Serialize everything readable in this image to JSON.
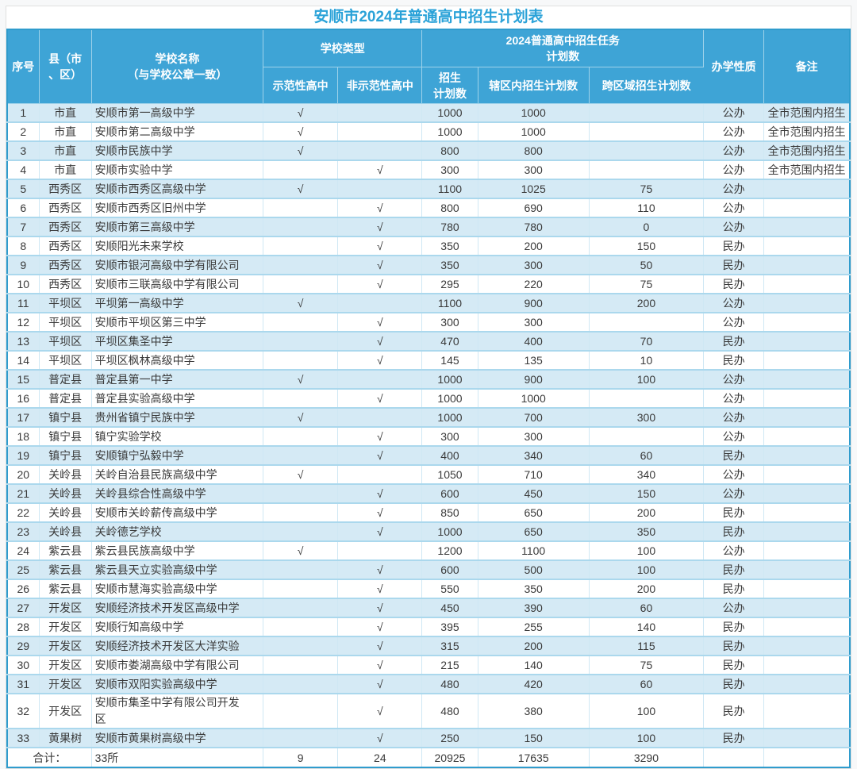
{
  "title": "安顺市2024年普通高中招生计划表",
  "header": {
    "xuhao": "序号",
    "county": "县（市\n、区）",
    "school": "学校名称\n（与学校公章一致）",
    "school_type_group": "学校类型",
    "demo": "示范性高中",
    "non_demo": "非示范性高中",
    "task_group": "2024普通高中招生任务\n计划数",
    "plan": "招生\n计划数",
    "in_district": "辖区内招生计划数",
    "cross": "跨区域招生计划数",
    "nature": "办学性质",
    "remark": "备注"
  },
  "rows": [
    {
      "no": "1",
      "county": "市直",
      "school": "安顺市第一高级中学",
      "demo": "√",
      "non_demo": "",
      "plan": "1000",
      "in_district": "1000",
      "cross": "",
      "nature": "公办",
      "remark": "全市范围内招生"
    },
    {
      "no": "2",
      "county": "市直",
      "school": "安顺市第二高级中学",
      "demo": "√",
      "non_demo": "",
      "plan": "1000",
      "in_district": "1000",
      "cross": "",
      "nature": "公办",
      "remark": "全市范围内招生"
    },
    {
      "no": "3",
      "county": "市直",
      "school": "安顺市民族中学",
      "demo": "√",
      "non_demo": "",
      "plan": "800",
      "in_district": "800",
      "cross": "",
      "nature": "公办",
      "remark": "全市范围内招生"
    },
    {
      "no": "4",
      "county": "市直",
      "school": "安顺市实验中学",
      "demo": "",
      "non_demo": "√",
      "plan": "300",
      "in_district": "300",
      "cross": "",
      "nature": "公办",
      "remark": "全市范围内招生"
    },
    {
      "no": "5",
      "county": "西秀区",
      "school": "安顺市西秀区高级中学",
      "demo": "√",
      "non_demo": "",
      "plan": "1100",
      "in_district": "1025",
      "cross": "75",
      "nature": "公办",
      "remark": ""
    },
    {
      "no": "6",
      "county": "西秀区",
      "school": "安顺市西秀区旧州中学",
      "demo": "",
      "non_demo": "√",
      "plan": "800",
      "in_district": "690",
      "cross": "110",
      "nature": "公办",
      "remark": ""
    },
    {
      "no": "7",
      "county": "西秀区",
      "school": "安顺市第三高级中学",
      "demo": "",
      "non_demo": "√",
      "plan": "780",
      "in_district": "780",
      "cross": "0",
      "nature": "公办",
      "remark": ""
    },
    {
      "no": "8",
      "county": "西秀区",
      "school": "安顺阳光未来学校",
      "demo": "",
      "non_demo": "√",
      "plan": "350",
      "in_district": "200",
      "cross": "150",
      "nature": "民办",
      "remark": ""
    },
    {
      "no": "9",
      "county": "西秀区",
      "school": "安顺市银河高级中学有限公司",
      "demo": "",
      "non_demo": "√",
      "plan": "350",
      "in_district": "300",
      "cross": "50",
      "nature": "民办",
      "remark": ""
    },
    {
      "no": "10",
      "county": "西秀区",
      "school": "安顺市三联高级中学有限公司",
      "demo": "",
      "non_demo": "√",
      "plan": "295",
      "in_district": "220",
      "cross": "75",
      "nature": "民办",
      "remark": ""
    },
    {
      "no": "11",
      "county": "平坝区",
      "school": "平坝第一高级中学",
      "demo": "√",
      "non_demo": "",
      "plan": "1100",
      "in_district": "900",
      "cross": "200",
      "nature": "公办",
      "remark": ""
    },
    {
      "no": "12",
      "county": "平坝区",
      "school": "安顺市平坝区第三中学",
      "demo": "",
      "non_demo": "√",
      "plan": "300",
      "in_district": "300",
      "cross": "",
      "nature": "公办",
      "remark": ""
    },
    {
      "no": "13",
      "county": "平坝区",
      "school": "平坝区集圣中学",
      "demo": "",
      "non_demo": "√",
      "plan": "470",
      "in_district": "400",
      "cross": "70",
      "nature": "民办",
      "remark": ""
    },
    {
      "no": "14",
      "county": "平坝区",
      "school": "平坝区枫林高级中学",
      "demo": "",
      "non_demo": "√",
      "plan": "145",
      "in_district": "135",
      "cross": "10",
      "nature": "民办",
      "remark": ""
    },
    {
      "no": "15",
      "county": "普定县",
      "school": "普定县第一中学",
      "demo": "√",
      "non_demo": "",
      "plan": "1000",
      "in_district": "900",
      "cross": "100",
      "nature": "公办",
      "remark": ""
    },
    {
      "no": "16",
      "county": "普定县",
      "school": "普定县实验高级中学",
      "demo": "",
      "non_demo": "√",
      "plan": "1000",
      "in_district": "1000",
      "cross": "",
      "nature": "公办",
      "remark": ""
    },
    {
      "no": "17",
      "county": "镇宁县",
      "school": "贵州省镇宁民族中学",
      "demo": "√",
      "non_demo": "",
      "plan": "1000",
      "in_district": "700",
      "cross": "300",
      "nature": "公办",
      "remark": ""
    },
    {
      "no": "18",
      "county": "镇宁县",
      "school": "镇宁实验学校",
      "demo": "",
      "non_demo": "√",
      "plan": "300",
      "in_district": "300",
      "cross": "",
      "nature": "公办",
      "remark": ""
    },
    {
      "no": "19",
      "county": "镇宁县",
      "school": "安顺镇宁弘毅中学",
      "demo": "",
      "non_demo": "√",
      "plan": "400",
      "in_district": "340",
      "cross": "60",
      "nature": "民办",
      "remark": ""
    },
    {
      "no": "20",
      "county": "关岭县",
      "school": "关岭自治县民族高级中学",
      "demo": "√",
      "non_demo": "",
      "plan": "1050",
      "in_district": "710",
      "cross": "340",
      "nature": "公办",
      "remark": ""
    },
    {
      "no": "21",
      "county": "关岭县",
      "school": "关岭县综合性高级中学",
      "demo": "",
      "non_demo": "√",
      "plan": "600",
      "in_district": "450",
      "cross": "150",
      "nature": "公办",
      "remark": ""
    },
    {
      "no": "22",
      "county": "关岭县",
      "school": "安顺市关岭薪传高级中学",
      "demo": "",
      "non_demo": "√",
      "plan": "850",
      "in_district": "650",
      "cross": "200",
      "nature": "民办",
      "remark": ""
    },
    {
      "no": "23",
      "county": "关岭县",
      "school": "关岭德艺学校",
      "demo": "",
      "non_demo": "√",
      "plan": "1000",
      "in_district": "650",
      "cross": "350",
      "nature": "民办",
      "remark": ""
    },
    {
      "no": "24",
      "county": "紫云县",
      "school": "紫云县民族高级中学",
      "demo": "√",
      "non_demo": "",
      "plan": "1200",
      "in_district": "1100",
      "cross": "100",
      "nature": "公办",
      "remark": ""
    },
    {
      "no": "25",
      "county": "紫云县",
      "school": "紫云县天立实验高级中学",
      "demo": "",
      "non_demo": "√",
      "plan": "600",
      "in_district": "500",
      "cross": "100",
      "nature": "民办",
      "remark": ""
    },
    {
      "no": "26",
      "county": "紫云县",
      "school": "安顺市慧海实验高级中学",
      "demo": "",
      "non_demo": "√",
      "plan": "550",
      "in_district": "350",
      "cross": "200",
      "nature": "民办",
      "remark": ""
    },
    {
      "no": "27",
      "county": "开发区",
      "school": "安顺经济技术开发区高级中学",
      "demo": "",
      "non_demo": "√",
      "plan": "450",
      "in_district": "390",
      "cross": "60",
      "nature": "公办",
      "remark": ""
    },
    {
      "no": "28",
      "county": "开发区",
      "school": "安顺行知高级中学",
      "demo": "",
      "non_demo": "√",
      "plan": "395",
      "in_district": "255",
      "cross": "140",
      "nature": "民办",
      "remark": ""
    },
    {
      "no": "29",
      "county": "开发区",
      "school": "安顺经济技术开发区大洋实验",
      "demo": "",
      "non_demo": "√",
      "plan": "315",
      "in_district": "200",
      "cross": "115",
      "nature": "民办",
      "remark": ""
    },
    {
      "no": "30",
      "county": "开发区",
      "school": "安顺市娄湖高级中学有限公司",
      "demo": "",
      "non_demo": "√",
      "plan": "215",
      "in_district": "140",
      "cross": "75",
      "nature": "民办",
      "remark": ""
    },
    {
      "no": "31",
      "county": "开发区",
      "school": "安顺市双阳实验高级中学",
      "demo": "",
      "non_demo": "√",
      "plan": "480",
      "in_district": "420",
      "cross": "60",
      "nature": "民办",
      "remark": ""
    },
    {
      "no": "32",
      "county": "开发区",
      "school": "安顺市集圣中学有限公司开发\n区",
      "demo": "",
      "non_demo": "√",
      "plan": "480",
      "in_district": "380",
      "cross": "100",
      "nature": "民办",
      "remark": ""
    },
    {
      "no": "33",
      "county": "黄果树",
      "school": "安顺市黄果树高级中学",
      "demo": "",
      "non_demo": "√",
      "plan": "250",
      "in_district": "150",
      "cross": "100",
      "nature": "民办",
      "remark": ""
    }
  ],
  "total": {
    "label": "合计：",
    "schools": "33所",
    "demo": "9",
    "non_demo": "24",
    "plan": "20925",
    "in_district": "17635",
    "cross": "3290",
    "nature": "",
    "remark": ""
  },
  "colors": {
    "header_bg": "#3ea4d6",
    "stripe_bg": "#d5eaf5",
    "title_text": "#2aa2d8",
    "grid_line": "#abd8ed",
    "outer_border": "#2f9ccd"
  }
}
